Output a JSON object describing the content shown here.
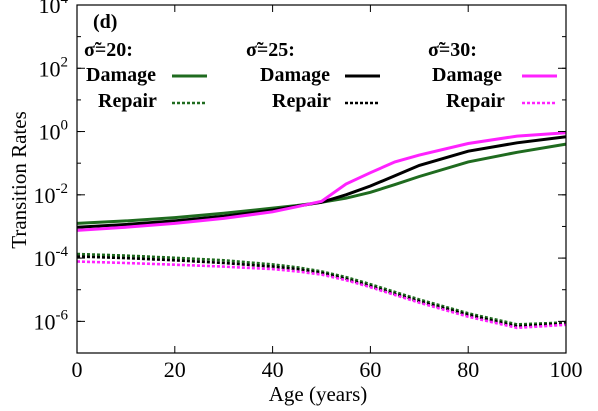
{
  "chart_data": {
    "type": "line",
    "panel_tag": "(d)",
    "xlabel": "Age (years)",
    "ylabel": "Transition Rates",
    "xlim": [
      0,
      100
    ],
    "ylim": [
      1e-07,
      10000.0
    ],
    "yscale": "log",
    "x_ticks": [
      0,
      20,
      40,
      60,
      80,
      100
    ],
    "y_ticks": [
      {
        "value": 10000.0,
        "base": "10",
        "exp": "4"
      },
      {
        "value": 100.0,
        "base": "10",
        "exp": "2"
      },
      {
        "value": 1,
        "base": "10",
        "exp": "0"
      },
      {
        "value": 0.01,
        "base": "10",
        "exp": "-2"
      },
      {
        "value": 0.0001,
        "base": "10",
        "exp": "-4"
      },
      {
        "value": 1e-06,
        "base": "10",
        "exp": "-6"
      }
    ],
    "grid": false,
    "groups": [
      {
        "heading": "σ̃=20:",
        "damage_label": "Damage",
        "repair_label": "Repair",
        "color": "#1f6b1f"
      },
      {
        "heading": "σ̃=25:",
        "damage_label": "Damage",
        "repair_label": "Repair",
        "color": "#000000"
      },
      {
        "heading": "σ̃=30:",
        "damage_label": "Damage",
        "repair_label": "Repair",
        "color": "#ff22ff"
      }
    ],
    "x": [
      0,
      10,
      20,
      30,
      40,
      45,
      50,
      55,
      60,
      65,
      70,
      80,
      90,
      100
    ],
    "series": [
      {
        "group": 0,
        "kind": "damage",
        "style": "solid",
        "values": [
          0.00125,
          0.0015,
          0.0019,
          0.0026,
          0.0038,
          0.0046,
          0.0058,
          0.0078,
          0.012,
          0.021,
          0.038,
          0.11,
          0.22,
          0.4
        ]
      },
      {
        "group": 1,
        "kind": "damage",
        "style": "solid",
        "values": [
          0.00095,
          0.00115,
          0.0015,
          0.0021,
          0.0033,
          0.0044,
          0.0058,
          0.01,
          0.019,
          0.04,
          0.085,
          0.24,
          0.44,
          0.68
        ]
      },
      {
        "group": 2,
        "kind": "damage",
        "style": "solid",
        "values": [
          0.00075,
          0.00095,
          0.00125,
          0.0018,
          0.0029,
          0.0042,
          0.0062,
          0.022,
          0.05,
          0.11,
          0.18,
          0.42,
          0.72,
          0.92
        ]
      },
      {
        "group": 0,
        "kind": "repair",
        "style": "dashed",
        "values": [
          0.000135,
          0.00012,
          0.000102,
          8.5e-05,
          6.3e-05,
          5.1e-05,
          3.8e-05,
          2.5e-05,
          1.5e-05,
          8.5e-06,
          4.9e-06,
          1.8e-06,
          8e-07,
          9.2e-07
        ]
      },
      {
        "group": 1,
        "kind": "repair",
        "style": "dashed",
        "values": [
          0.000112,
          0.0001,
          8.5e-05,
          7e-05,
          5.4e-05,
          4.5e-05,
          3.4e-05,
          2.2e-05,
          1.3e-05,
          7.4e-06,
          4.3e-06,
          1.6e-06,
          7e-07,
          8.5e-07
        ]
      },
      {
        "group": 2,
        "kind": "repair",
        "style": "dashed",
        "values": [
          7.8e-05,
          7e-05,
          6.2e-05,
          5.4e-05,
          4.5e-05,
          3.8e-05,
          3e-05,
          2e-05,
          1.2e-05,
          6.8e-06,
          3.9e-06,
          1.4e-06,
          6.2e-07,
          7.8e-07
        ]
      }
    ]
  }
}
